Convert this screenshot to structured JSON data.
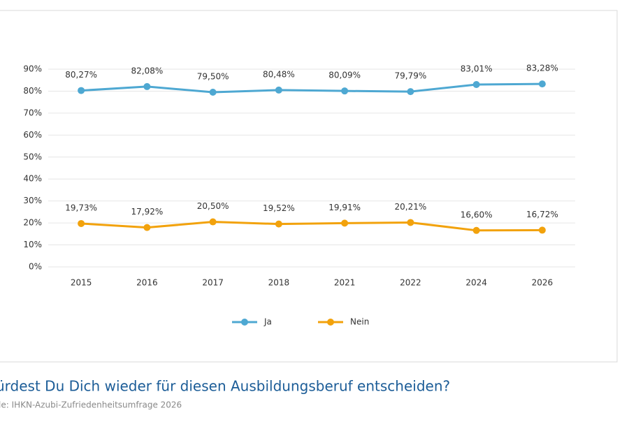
{
  "chart_data": {
    "type": "line",
    "title": "ürdest Du Dich wieder für diesen Ausbildungsberuf entscheiden?",
    "source": "le: IHKN-Azubi-Zufriedenheitsumfrage 2026",
    "categories": [
      "2015",
      "2016",
      "2017",
      "2018",
      "2021",
      "2022",
      "2024",
      "2026"
    ],
    "series": [
      {
        "name": "Ja",
        "color": "#4ea8d2",
        "values": [
          80.27,
          82.08,
          79.5,
          80.48,
          80.09,
          79.79,
          83.01,
          83.28
        ],
        "value_labels": [
          "80,27%",
          "82,08%",
          "79,50%",
          "80,48%",
          "80,09%",
          "79,79%",
          "83,01%",
          "83,28%"
        ]
      },
      {
        "name": "Nein",
        "color": "#f2a20c",
        "values": [
          19.73,
          17.92,
          20.5,
          19.52,
          19.91,
          20.21,
          16.6,
          16.72
        ],
        "value_labels": [
          "19,73%",
          "17,92%",
          "20,50%",
          "19,52%",
          "19,91%",
          "20,21%",
          "16,60%",
          "16,72%"
        ]
      }
    ],
    "ylim": [
      0,
      90
    ],
    "yticks": [
      {
        "value": 0,
        "label": "0%"
      },
      {
        "value": 10,
        "label": "10%"
      },
      {
        "value": 20,
        "label": "20%"
      },
      {
        "value": 30,
        "label": "30%"
      },
      {
        "value": 40,
        "label": "40%"
      },
      {
        "value": 50,
        "label": "50%"
      },
      {
        "value": 60,
        "label": "60%"
      },
      {
        "value": 70,
        "label": "70%"
      },
      {
        "value": 80,
        "label": "80%"
      },
      {
        "value": 90,
        "label": "90%"
      }
    ],
    "grid": true,
    "legend": "bottom"
  }
}
